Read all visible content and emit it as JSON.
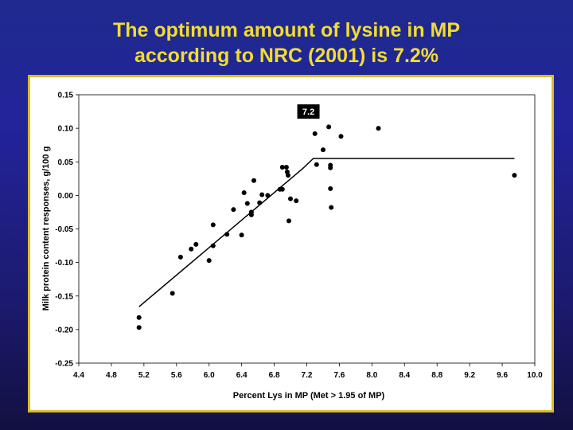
{
  "slide": {
    "title_line1": "The optimum amount of lysine in MP",
    "title_line2": "according to NRC (2001) is 7.2%"
  },
  "colors": {
    "title": "#f2dc30",
    "frame_border": "#d9be2a",
    "plot": "#000000"
  },
  "chart_data": {
    "type": "scatter",
    "title": "",
    "xlabel": "Percent Lys in MP (Met > 1.95 of MP)",
    "ylabel": "Milk protein content responses, g/100 g",
    "xlim": [
      4.4,
      10.0
    ],
    "ylim": [
      -0.25,
      0.15
    ],
    "x_ticks": [
      "4.4",
      "4.8",
      "5.2",
      "5.6",
      "6.0",
      "6.4",
      "6.8",
      "7.2",
      "7.6",
      "8.0",
      "8.4",
      "8.8",
      "9.2",
      "9.6",
      "10.0"
    ],
    "y_ticks": [
      "0.15",
      "0.10",
      "0.05",
      "0.00",
      "-0.05",
      "-0.10",
      "-0.15",
      "-0.20",
      "-0.25"
    ],
    "grid": false,
    "points": [
      {
        "x": 5.14,
        "y": -0.182
      },
      {
        "x": 5.14,
        "y": -0.197
      },
      {
        "x": 5.55,
        "y": -0.146
      },
      {
        "x": 5.65,
        "y": -0.092
      },
      {
        "x": 5.78,
        "y": -0.08
      },
      {
        "x": 5.84,
        "y": -0.073
      },
      {
        "x": 6.0,
        "y": -0.097
      },
      {
        "x": 6.05,
        "y": -0.075
      },
      {
        "x": 6.05,
        "y": -0.044
      },
      {
        "x": 6.22,
        "y": -0.058
      },
      {
        "x": 6.3,
        "y": -0.021
      },
      {
        "x": 6.4,
        "y": -0.059
      },
      {
        "x": 6.43,
        "y": 0.004
      },
      {
        "x": 6.47,
        "y": -0.012
      },
      {
        "x": 6.52,
        "y": -0.025
      },
      {
        "x": 6.52,
        "y": -0.029
      },
      {
        "x": 6.55,
        "y": 0.022
      },
      {
        "x": 6.62,
        "y": -0.011
      },
      {
        "x": 6.65,
        "y": 0.001
      },
      {
        "x": 6.72,
        "y": 0.0
      },
      {
        "x": 6.87,
        "y": 0.009
      },
      {
        "x": 6.9,
        "y": 0.009
      },
      {
        "x": 6.9,
        "y": 0.042
      },
      {
        "x": 6.95,
        "y": 0.042
      },
      {
        "x": 6.96,
        "y": 0.035
      },
      {
        "x": 6.97,
        "y": 0.03
      },
      {
        "x": 6.98,
        "y": -0.038
      },
      {
        "x": 7.0,
        "y": -0.005
      },
      {
        "x": 7.07,
        "y": -0.008
      },
      {
        "x": 7.3,
        "y": 0.092
      },
      {
        "x": 7.32,
        "y": 0.046
      },
      {
        "x": 7.4,
        "y": 0.068
      },
      {
        "x": 7.47,
        "y": 0.102
      },
      {
        "x": 7.49,
        "y": 0.045
      },
      {
        "x": 7.49,
        "y": 0.041
      },
      {
        "x": 7.49,
        "y": 0.01
      },
      {
        "x": 7.5,
        "y": -0.018
      },
      {
        "x": 7.62,
        "y": 0.088
      },
      {
        "x": 8.08,
        "y": 0.1
      },
      {
        "x": 9.75,
        "y": 0.03
      }
    ],
    "fit_line": {
      "x": [
        5.14,
        7.15,
        7.28,
        9.75
      ],
      "y": [
        -0.166,
        0.04,
        0.055,
        0.055
      ]
    },
    "annotation": {
      "text": "7.2",
      "x": 7.22,
      "y": 0.125
    }
  }
}
